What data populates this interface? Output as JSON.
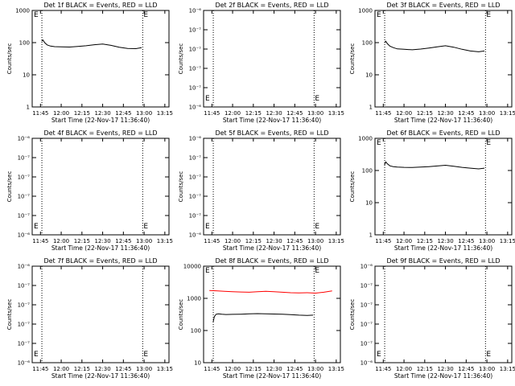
{
  "colors": {
    "events": "#000000",
    "lld": "#ff0000",
    "axis": "#000000",
    "background": "#ffffff"
  },
  "x_tick_labels": [
    "11:45",
    "12:00",
    "12:15",
    "12:30",
    "12:45",
    "13:00",
    "13:15"
  ],
  "xlabel": "Start Time (22-Nov-17 11:36:40)",
  "ylabel": "Counts/sec",
  "chart_data": [
    {
      "type": "line",
      "title": "Det 1f BLACK = Events, RED = LLD",
      "scale": "log",
      "ylim": [
        1,
        1000
      ],
      "y_tick_labels": [
        "1",
        "10",
        "100",
        "1000"
      ],
      "marker_label": "E",
      "series": [
        {
          "color": "#000000",
          "x": [
            11.765,
            11.78,
            11.8,
            11.83,
            11.87,
            11.92,
            12.0,
            12.1,
            12.2,
            12.3,
            12.4,
            12.5,
            12.6,
            12.7,
            12.8,
            12.9,
            12.97
          ],
          "values": [
            110,
            120,
            100,
            85,
            78,
            75,
            74,
            73,
            76,
            80,
            86,
            90,
            82,
            72,
            66,
            65,
            70
          ]
        }
      ]
    },
    {
      "type": "line",
      "title": "Det 2f BLACK = Events, RED = LLD",
      "scale": "log",
      "ylim": [
        1e-07,
        1e-06
      ],
      "y_tick_labels": [
        "10⁻⁶",
        "10⁻⁷",
        "10⁻⁷",
        "10⁻⁷",
        "10⁻⁷",
        "10⁻⁶"
      ],
      "marker_label": "E",
      "series": []
    },
    {
      "type": "line",
      "title": "Det 3f BLACK = Events, RED = LLD",
      "scale": "log",
      "ylim": [
        1,
        1000
      ],
      "y_tick_labels": [
        "1",
        "10",
        "100",
        "1000"
      ],
      "marker_label": "E",
      "series": [
        {
          "color": "#000000",
          "x": [
            11.765,
            11.78,
            11.8,
            11.83,
            11.87,
            11.92,
            12.0,
            12.1,
            12.2,
            12.3,
            12.4,
            12.5,
            12.6,
            12.7,
            12.8,
            12.9,
            12.97
          ],
          "values": [
            100,
            110,
            92,
            78,
            70,
            64,
            62,
            60,
            63,
            68,
            74,
            80,
            72,
            62,
            55,
            52,
            55
          ]
        }
      ]
    },
    {
      "type": "line",
      "title": "Det 4f BLACK = Events, RED = LLD",
      "scale": "log",
      "ylim": [
        1e-07,
        1e-06
      ],
      "y_tick_labels": [
        "10⁻⁶",
        "10⁻⁷",
        "10⁻⁷",
        "10⁻⁷",
        "10⁻⁷",
        "10⁻⁶"
      ],
      "marker_label": "E",
      "series": []
    },
    {
      "type": "line",
      "title": "Det 5f BLACK = Events, RED = LLD",
      "scale": "log",
      "ylim": [
        1e-07,
        1e-06
      ],
      "y_tick_labels": [
        "10⁻⁶",
        "10⁻⁷",
        "10⁻⁷",
        "10⁻⁷",
        "10⁻⁷",
        "10⁻⁶"
      ],
      "marker_label": "E",
      "series": []
    },
    {
      "type": "line",
      "title": "Det 6f BLACK = Events, RED = LLD",
      "scale": "log",
      "ylim": [
        1,
        1000
      ],
      "y_tick_labels": [
        "1",
        "10",
        "100",
        "1000"
      ],
      "marker_label": "E",
      "series": [
        {
          "color": "#000000",
          "x": [
            11.765,
            11.78,
            11.8,
            11.83,
            11.87,
            11.92,
            12.0,
            12.1,
            12.2,
            12.3,
            12.4,
            12.5,
            12.6,
            12.7,
            12.8,
            12.9,
            12.97
          ],
          "values": [
            150,
            185,
            160,
            140,
            132,
            128,
            125,
            124,
            127,
            132,
            138,
            145,
            135,
            125,
            118,
            112,
            118
          ]
        }
      ]
    },
    {
      "type": "line",
      "title": "Det 7f BLACK = Events, RED = LLD",
      "scale": "log",
      "ylim": [
        1e-07,
        1e-06
      ],
      "y_tick_labels": [
        "10⁻⁶",
        "10⁻⁷",
        "10⁻⁷",
        "10⁻⁷",
        "10⁻⁷",
        "10⁻⁶"
      ],
      "marker_label": "E",
      "series": []
    },
    {
      "type": "line",
      "title": "Det 8f BLACK = Events, RED = LLD",
      "scale": "log",
      "ylim": [
        10,
        10000
      ],
      "y_tick_labels": [
        "10",
        "100",
        "1000",
        "10000"
      ],
      "marker_label": "E",
      "series": [
        {
          "color": "#ff0000",
          "x": [
            11.72,
            11.8,
            11.9,
            12.0,
            12.1,
            12.2,
            12.3,
            12.4,
            12.5,
            12.6,
            12.7,
            12.8,
            12.9,
            13.0,
            13.1,
            13.2
          ],
          "values": [
            1750,
            1720,
            1650,
            1600,
            1580,
            1550,
            1600,
            1650,
            1600,
            1550,
            1500,
            1480,
            1500,
            1450,
            1550,
            1700
          ]
        },
        {
          "color": "#000000",
          "x": [
            11.765,
            11.78,
            11.8,
            11.83,
            11.87,
            11.92,
            12.0,
            12.1,
            12.2,
            12.3,
            12.4,
            12.5,
            12.6,
            12.7,
            12.8,
            12.9,
            12.97
          ],
          "values": [
            180,
            270,
            320,
            330,
            320,
            315,
            318,
            322,
            330,
            335,
            330,
            325,
            320,
            310,
            300,
            295,
            300
          ]
        }
      ]
    },
    {
      "type": "line",
      "title": "Det 9f BLACK = Events, RED = LLD",
      "scale": "log",
      "ylim": [
        1e-07,
        1e-06
      ],
      "y_tick_labels": [
        "10⁻⁶",
        "10⁻⁷",
        "10⁻⁷",
        "10⁻⁷",
        "10⁻⁷",
        "10⁻⁶"
      ],
      "marker_label": "E",
      "series": []
    }
  ]
}
